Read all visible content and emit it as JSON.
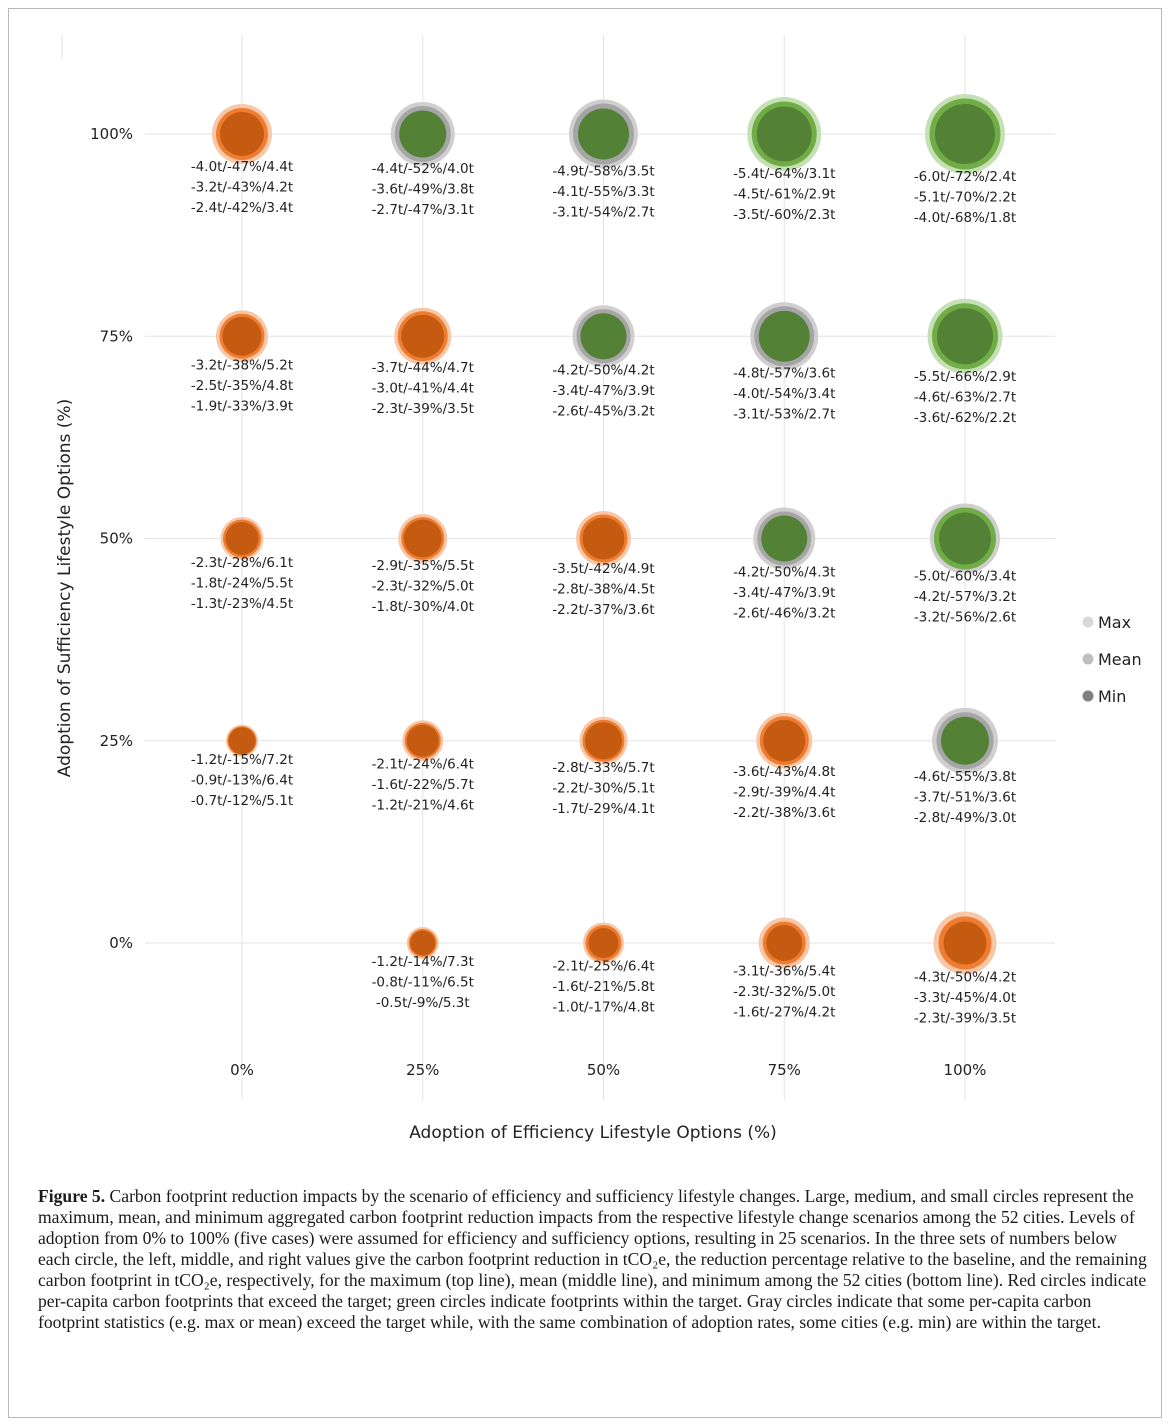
{
  "chart_data": {
    "type": "bubble",
    "xlabel": "Adoption of Efficiency Lifestyle Options (%)",
    "ylabel": "Adoption of Sufficiency Lifestyle Options (%)",
    "x_ticks": [
      "0%",
      "25%",
      "50%",
      "75%",
      "100%"
    ],
    "y_ticks": [
      "0%",
      "25%",
      "50%",
      "75%",
      "100%"
    ],
    "grid": true,
    "legend_position": "right",
    "legend": [
      {
        "label": "Max",
        "color": "#d9d9d9"
      },
      {
        "label": "Mean",
        "color": "#bfbfbf"
      },
      {
        "label": "Min",
        "color": "#7f7f7f"
      }
    ],
    "colors": {
      "red": {
        "max": "#f8c7a7",
        "mean": "#ee7d31",
        "min": "#c55a11"
      },
      "green": {
        "max": "#c5e0b4",
        "mean": "#70ad47",
        "min": "#538135"
      },
      "gray": {
        "max": "#d0cece",
        "mean": "#a5a5a5"
      }
    },
    "points": [
      {
        "x": 0,
        "y": 100,
        "reduction_t": [
          4.0,
          3.2,
          2.4
        ],
        "colors": [
          "red",
          "red",
          "red"
        ],
        "labels": [
          "-4.0t/-47%/4.4t",
          "-3.2t/-43%/4.2t",
          "-2.4t/-42%/3.4t"
        ]
      },
      {
        "x": 25,
        "y": 100,
        "reduction_t": [
          4.4,
          3.6,
          2.7
        ],
        "colors": [
          "gray",
          "gray",
          "green"
        ],
        "labels": [
          "-4.4t/-52%/4.0t",
          "-3.6t/-49%/3.8t",
          "-2.7t/-47%/3.1t"
        ]
      },
      {
        "x": 50,
        "y": 100,
        "reduction_t": [
          4.9,
          4.1,
          3.1
        ],
        "colors": [
          "gray",
          "gray",
          "green"
        ],
        "labels": [
          "-4.9t/-58%/3.5t",
          "-4.1t/-55%/3.3t",
          "-3.1t/-54%/2.7t"
        ]
      },
      {
        "x": 75,
        "y": 100,
        "reduction_t": [
          5.4,
          4.5,
          3.5
        ],
        "colors": [
          "green",
          "green",
          "green"
        ],
        "labels": [
          "-5.4t/-64%/3.1t",
          "-4.5t/-61%/2.9t",
          "-3.5t/-60%/2.3t"
        ]
      },
      {
        "x": 100,
        "y": 100,
        "reduction_t": [
          6.0,
          5.1,
          4.0
        ],
        "colors": [
          "green",
          "green",
          "green"
        ],
        "labels": [
          "-6.0t/-72%/2.4t",
          "-5.1t/-70%/2.2t",
          "-4.0t/-68%/1.8t"
        ]
      },
      {
        "x": 0,
        "y": 75,
        "reduction_t": [
          3.2,
          2.5,
          1.9
        ],
        "colors": [
          "red",
          "red",
          "red"
        ],
        "labels": [
          "-3.2t/-38%/5.2t",
          "-2.5t/-35%/4.8t",
          "-1.9t/-33%/3.9t"
        ]
      },
      {
        "x": 25,
        "y": 75,
        "reduction_t": [
          3.7,
          3.0,
          2.3
        ],
        "colors": [
          "red",
          "red",
          "red"
        ],
        "labels": [
          "-3.7t/-44%/4.7t",
          "-3.0t/-41%/4.4t",
          "-2.3t/-39%/3.5t"
        ]
      },
      {
        "x": 50,
        "y": 75,
        "reduction_t": [
          4.2,
          3.4,
          2.6
        ],
        "colors": [
          "gray",
          "gray",
          "green"
        ],
        "labels": [
          "-4.2t/-50%/4.2t",
          "-3.4t/-47%/3.9t",
          "-2.6t/-45%/3.2t"
        ]
      },
      {
        "x": 75,
        "y": 75,
        "reduction_t": [
          4.8,
          4.0,
          3.1
        ],
        "colors": [
          "gray",
          "gray",
          "green"
        ],
        "labels": [
          "-4.8t/-57%/3.6t",
          "-4.0t/-54%/3.4t",
          "-3.1t/-53%/2.7t"
        ]
      },
      {
        "x": 100,
        "y": 75,
        "reduction_t": [
          5.5,
          4.6,
          3.6
        ],
        "colors": [
          "green",
          "green",
          "green"
        ],
        "labels": [
          "-5.5t/-66%/2.9t",
          "-4.6t/-63%/2.7t",
          "-3.6t/-62%/2.2t"
        ]
      },
      {
        "x": 0,
        "y": 50,
        "reduction_t": [
          2.3,
          1.8,
          1.3
        ],
        "colors": [
          "red",
          "red",
          "red"
        ],
        "labels": [
          "-2.3t/-28%/6.1t",
          "-1.8t/-24%/5.5t",
          "-1.3t/-23%/4.5t"
        ]
      },
      {
        "x": 25,
        "y": 50,
        "reduction_t": [
          2.9,
          2.3,
          1.8
        ],
        "colors": [
          "red",
          "red",
          "red"
        ],
        "labels": [
          "-2.9t/-35%/5.5t",
          "-2.3t/-32%/5.0t",
          "-1.8t/-30%/4.0t"
        ]
      },
      {
        "x": 50,
        "y": 50,
        "reduction_t": [
          3.5,
          2.8,
          2.2
        ],
        "colors": [
          "red",
          "red",
          "red"
        ],
        "labels": [
          "-3.5t/-42%/4.9t",
          "-2.8t/-38%/4.5t",
          "-2.2t/-37%/3.6t"
        ]
      },
      {
        "x": 75,
        "y": 50,
        "reduction_t": [
          4.2,
          3.4,
          2.6
        ],
        "colors": [
          "gray",
          "gray",
          "green"
        ],
        "labels": [
          "-4.2t/-50%/4.3t",
          "-3.4t/-47%/3.9t",
          "-2.6t/-46%/3.2t"
        ]
      },
      {
        "x": 100,
        "y": 50,
        "reduction_t": [
          5.0,
          4.2,
          3.2
        ],
        "colors": [
          "gray",
          "green",
          "green"
        ],
        "labels": [
          "-5.0t/-60%/3.4t",
          "-4.2t/-57%/3.2t",
          "-3.2t/-56%/2.6t"
        ]
      },
      {
        "x": 0,
        "y": 25,
        "reduction_t": [
          1.2,
          0.9,
          0.7
        ],
        "colors": [
          "red",
          "red",
          "red"
        ],
        "labels": [
          "-1.2t/-15%/7.2t",
          "-0.9t/-13%/6.4t",
          "-0.7t/-12%/5.1t"
        ]
      },
      {
        "x": 25,
        "y": 25,
        "reduction_t": [
          2.1,
          1.6,
          1.2
        ],
        "colors": [
          "red",
          "red",
          "red"
        ],
        "labels": [
          "-2.1t/-24%/6.4t",
          "-1.6t/-22%/5.7t",
          "-1.2t/-21%/4.6t"
        ]
      },
      {
        "x": 50,
        "y": 25,
        "reduction_t": [
          2.8,
          2.2,
          1.7
        ],
        "colors": [
          "red",
          "red",
          "red"
        ],
        "labels": [
          "-2.8t/-33%/5.7t",
          "-2.2t/-30%/5.1t",
          "-1.7t/-29%/4.1t"
        ]
      },
      {
        "x": 75,
        "y": 25,
        "reduction_t": [
          3.6,
          2.9,
          2.2
        ],
        "colors": [
          "red",
          "red",
          "red"
        ],
        "labels": [
          "-3.6t/-43%/4.8t",
          "-2.9t/-39%/4.4t",
          "-2.2t/-38%/3.6t"
        ]
      },
      {
        "x": 100,
        "y": 25,
        "reduction_t": [
          4.6,
          3.7,
          2.8
        ],
        "colors": [
          "gray",
          "gray",
          "green"
        ],
        "labels": [
          "-4.6t/-55%/3.8t",
          "-3.7t/-51%/3.6t",
          "-2.8t/-49%/3.0t"
        ]
      },
      {
        "x": 25,
        "y": 0,
        "reduction_t": [
          1.2,
          0.8,
          0.5
        ],
        "colors": [
          "red",
          "red",
          "red"
        ],
        "labels": [
          "-1.2t/-14%/7.3t",
          "-0.8t/-11%/6.5t",
          "-0.5t/-9%/5.3t"
        ]
      },
      {
        "x": 50,
        "y": 0,
        "reduction_t": [
          2.1,
          1.6,
          1.0
        ],
        "colors": [
          "red",
          "red",
          "red"
        ],
        "labels": [
          "-2.1t/-25%/6.4t",
          "-1.6t/-21%/5.8t",
          "-1.0t/-17%/4.8t"
        ]
      },
      {
        "x": 75,
        "y": 0,
        "reduction_t": [
          3.1,
          2.3,
          1.6
        ],
        "colors": [
          "red",
          "red",
          "red"
        ],
        "labels": [
          "-3.1t/-36%/5.4t",
          "-2.3t/-32%/5.0t",
          "-1.6t/-27%/4.2t"
        ]
      },
      {
        "x": 100,
        "y": 0,
        "reduction_t": [
          4.3,
          3.3,
          2.3
        ],
        "colors": [
          "red",
          "red",
          "red"
        ],
        "labels": [
          "-4.3t/-50%/4.2t",
          "-3.3t/-45%/4.0t",
          "-2.3t/-39%/3.5t"
        ]
      }
    ]
  },
  "caption": {
    "lead": "Figure 5.",
    "text": "Carbon footprint reduction impacts by the scenario of efficiency and sufficiency lifestyle changes. Large, medium, and small circles represent the maximum, mean, and minimum aggregated carbon footprint reduction impacts from the respective lifestyle change scenarios among the 52 cities. Levels of adoption from 0% to 100% (five cases) were assumed for efficiency and sufficiency options, resulting in 25 scenarios. In the three sets of numbers below each circle, the left, middle, and right values give the carbon footprint reduction in tCO₂e, the reduction percentage relative to the baseline, and the remaining carbon footprint in tCO₂e, respectively, for the maximum (top line), mean (middle line), and minimum among the 52 cities (bottom line). Red circles indicate per-capita carbon footprints that exceed the target; green circles indicate footprints within the target. Gray circles indicate that some per-capita carbon footprint statistics (e.g. max or mean) exceed the target while, with the same combination of adoption rates, some cities (e.g. min) are within the target."
  }
}
